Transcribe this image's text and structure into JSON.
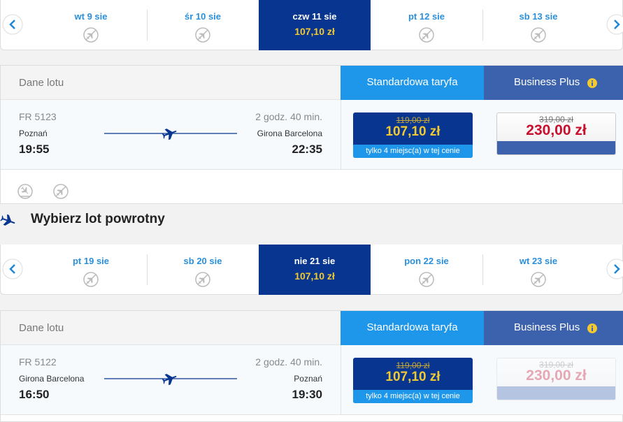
{
  "outbound": {
    "dates": [
      {
        "day": "wt 9 sie"
      },
      {
        "day": "śr 10 sie"
      },
      {
        "day": "czw 11 sie",
        "price": "107,10 zł"
      },
      {
        "day": "pt 12 sie"
      },
      {
        "day": "sb 13 sie"
      }
    ],
    "header": {
      "details": "Dane lotu",
      "standard": "Standardowa taryfa",
      "business": "Business Plus"
    },
    "flight": {
      "number": "FR 5123",
      "duration": "2 godz. 40 min.",
      "from": "Poznań",
      "to": "Girona Barcelona",
      "depart": "19:55",
      "arrive": "22:35",
      "standard": {
        "old_price": "119,00 zł",
        "price": "107,10 zł",
        "note": "tylko 4 miejsc(a) w tej cenie"
      },
      "business": {
        "old_price": "319,00 zł",
        "price": "230,00 zł"
      }
    }
  },
  "return_title": "Wybierz lot powrotny",
  "inbound": {
    "dates": [
      {
        "day": "pt 19 sie"
      },
      {
        "day": "sb 20 sie"
      },
      {
        "day": "nie 21 sie",
        "price": "107,10 zł"
      },
      {
        "day": "pon 22 sie"
      },
      {
        "day": "wt 23 sie"
      }
    ],
    "header": {
      "details": "Dane lotu",
      "standard": "Standardowa taryfa",
      "business": "Business Plus"
    },
    "flight": {
      "number": "FR 5122",
      "duration": "2 godz. 40 min.",
      "from": "Girona Barcelona",
      "to": "Poznań",
      "depart": "16:50",
      "arrive": "19:30",
      "standard": {
        "old_price": "119,00 zł",
        "price": "107,10 zł",
        "note": "tylko 4 miejsc(a) w tej cenie"
      },
      "business": {
        "old_price": "319,00 zł",
        "price": "230,00 zł"
      }
    }
  }
}
